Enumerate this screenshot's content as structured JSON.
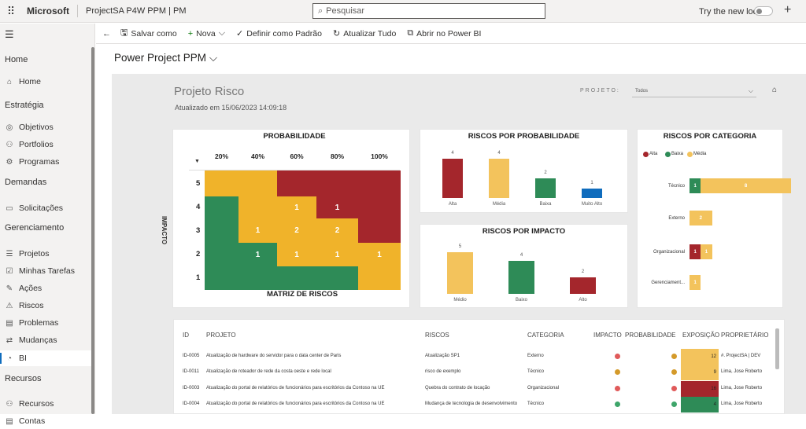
{
  "topbar": {
    "brand": "Microsoft",
    "app_title": "ProjectSA P4W PPM | PM",
    "search_placeholder": "Pesquisar",
    "try_new": "Try the new look"
  },
  "sidebar": {
    "sections": [
      {
        "heading": "Home",
        "items": [
          {
            "label": "Home",
            "icon": "home-icon"
          }
        ]
      },
      {
        "heading": "Estratégia",
        "items": [
          {
            "label": "Objetivos",
            "icon": "target-icon"
          },
          {
            "label": "Portfolios",
            "icon": "portfolio-icon"
          },
          {
            "label": "Programas",
            "icon": "program-icon"
          }
        ]
      },
      {
        "heading": "Demandas",
        "items": [
          {
            "label": "Solicitações",
            "icon": "request-icon"
          }
        ]
      },
      {
        "heading": "Gerenciamento",
        "items": [
          {
            "label": "Projetos",
            "icon": "project-icon"
          },
          {
            "label": "Minhas Tarefas",
            "icon": "task-icon"
          },
          {
            "label": "Ações",
            "icon": "action-icon"
          },
          {
            "label": "Riscos",
            "icon": "risk-icon"
          },
          {
            "label": "Problemas",
            "icon": "problem-icon"
          },
          {
            "label": "Mudanças",
            "icon": "change-icon"
          },
          {
            "label": "BI",
            "icon": "bi-icon",
            "active": true
          }
        ]
      },
      {
        "heading": "Recursos",
        "items": [
          {
            "label": "Recursos",
            "icon": "resources-icon"
          },
          {
            "label": "Contas",
            "icon": "accounts-icon"
          }
        ]
      }
    ]
  },
  "commands": {
    "save": "Salvar como",
    "new": "Nova",
    "set_default": "Definir como Padrão",
    "refresh": "Atualizar Tudo",
    "open_pbi": "Abrir no Power BI"
  },
  "page": {
    "title": "Power Project PPM"
  },
  "report": {
    "title": "Projeto Risco",
    "updated": "Atualizado em 15/06/2023 14:09:18",
    "projeto_label": "PROJETO:",
    "projeto_value": "Todos"
  },
  "colors": {
    "red": "#a4262c",
    "green": "#2e8b57",
    "yellow": "#f0b32a",
    "light_yellow": "#f3c35c",
    "blue": "#0f6cbd"
  },
  "matrix": {
    "title": "PROBABILIDADE",
    "subtitle": "MATRIZ DE RISCOS",
    "y_label": "IMPACTO",
    "columns": [
      "20%",
      "40%",
      "60%",
      "80%",
      "100%"
    ],
    "rows": [
      "5",
      "4",
      "3",
      "2",
      "1"
    ],
    "cells": [
      [
        "yellow",
        "yellow",
        "red",
        "red",
        "red"
      ],
      [
        "green",
        "yellow",
        "yellow",
        "red",
        "red"
      ],
      [
        "green",
        "yellow",
        "yellow",
        "yellow",
        "red"
      ],
      [
        "green",
        "green",
        "yellow",
        "yellow",
        "yellow"
      ],
      [
        "green",
        "green",
        "green",
        "green",
        "yellow"
      ]
    ],
    "values": [
      [
        "",
        "",
        "",
        "",
        ""
      ],
      [
        "",
        "",
        "1",
        "1",
        ""
      ],
      [
        "",
        "1",
        "2",
        "2",
        ""
      ],
      [
        "",
        "1",
        "1",
        "1",
        "1"
      ],
      [
        "",
        "",
        "",
        "",
        ""
      ]
    ]
  },
  "chart_data": [
    {
      "type": "bar",
      "title": "RISCOS POR PROBABILIDADE",
      "categories": [
        "Alta",
        "Média",
        "Baixa",
        "Muito Alto"
      ],
      "values": [
        4,
        4,
        2,
        1
      ],
      "colors": [
        "#a4262c",
        "#f3c35c",
        "#2e8b57",
        "#0f6cbd"
      ]
    },
    {
      "type": "bar",
      "title": "RISCOS POR IMPACTO",
      "categories": [
        "Médio",
        "Baixo",
        "Alto"
      ],
      "values": [
        5,
        4,
        2
      ],
      "colors": [
        "#f3c35c",
        "#2e8b57",
        "#a4262c"
      ]
    },
    {
      "type": "bar",
      "orientation": "horizontal",
      "stacked": true,
      "title": "RISCOS POR CATEGORIA",
      "legend": [
        "Alta",
        "Baixa",
        "Média"
      ],
      "legend_colors": [
        "#a4262c",
        "#2e8b57",
        "#f3c35c"
      ],
      "categories": [
        "Técnico",
        "Externo",
        "Organizacional",
        "Gerenciament..."
      ],
      "series": [
        {
          "name": "Alta",
          "values": [
            0,
            0,
            1,
            0
          ]
        },
        {
          "name": "Baixa",
          "values": [
            1,
            0,
            0,
            0
          ]
        },
        {
          "name": "Média",
          "values": [
            8,
            2,
            1,
            1
          ]
        }
      ]
    }
  ],
  "table": {
    "headers": [
      "ID",
      "PROJETO",
      "RISCOS",
      "CATEGORIA",
      "IMPACTO",
      "PROBABILIDADE",
      "EXPOSIÇÃO",
      "PROPRIETÁRIO"
    ],
    "rows": [
      {
        "id": "ID-0005",
        "projeto": "Atualização de hardware do servidor para o data center de Paris",
        "risco": "Atualização SP1",
        "categoria": "Externo",
        "impacto": "#e05a5a",
        "prob": "#d49a2a",
        "exp": "12",
        "exp_color": "#f3c35c",
        "owner": "#. ProjectSA | DEV"
      },
      {
        "id": "ID-0011",
        "projeto": "Atualização de roteador de rede da costa oeste e rede local",
        "risco": "risco de exemplo",
        "categoria": "Técnico",
        "impacto": "#d49a2a",
        "prob": "#d49a2a",
        "exp": "9",
        "exp_color": "#f3c35c",
        "owner": "Lima, Jose Roberto"
      },
      {
        "id": "ID-0003",
        "projeto": "Atualização do portal de relatórios de funcionários para escritórios da Contoso na UE",
        "risco": "Quebra do contrato de locação",
        "categoria": "Organizacional",
        "impacto": "#e05a5a",
        "prob": "#e05a5a",
        "exp": "16",
        "exp_color": "#a4262c",
        "owner": "Lima, Jose Roberto"
      },
      {
        "id": "ID-0004",
        "projeto": "Atualização do portal de relatórios de funcionários para escritórios da Contoso na UE",
        "risco": "Mudança de tecnologia de desenvolvimento",
        "categoria": "Técnico",
        "impacto": "#3ea56a",
        "prob": "#3ea56a",
        "exp": "4",
        "exp_color": "#2e8b57",
        "owner": "Lima, Jose Roberto"
      }
    ]
  }
}
